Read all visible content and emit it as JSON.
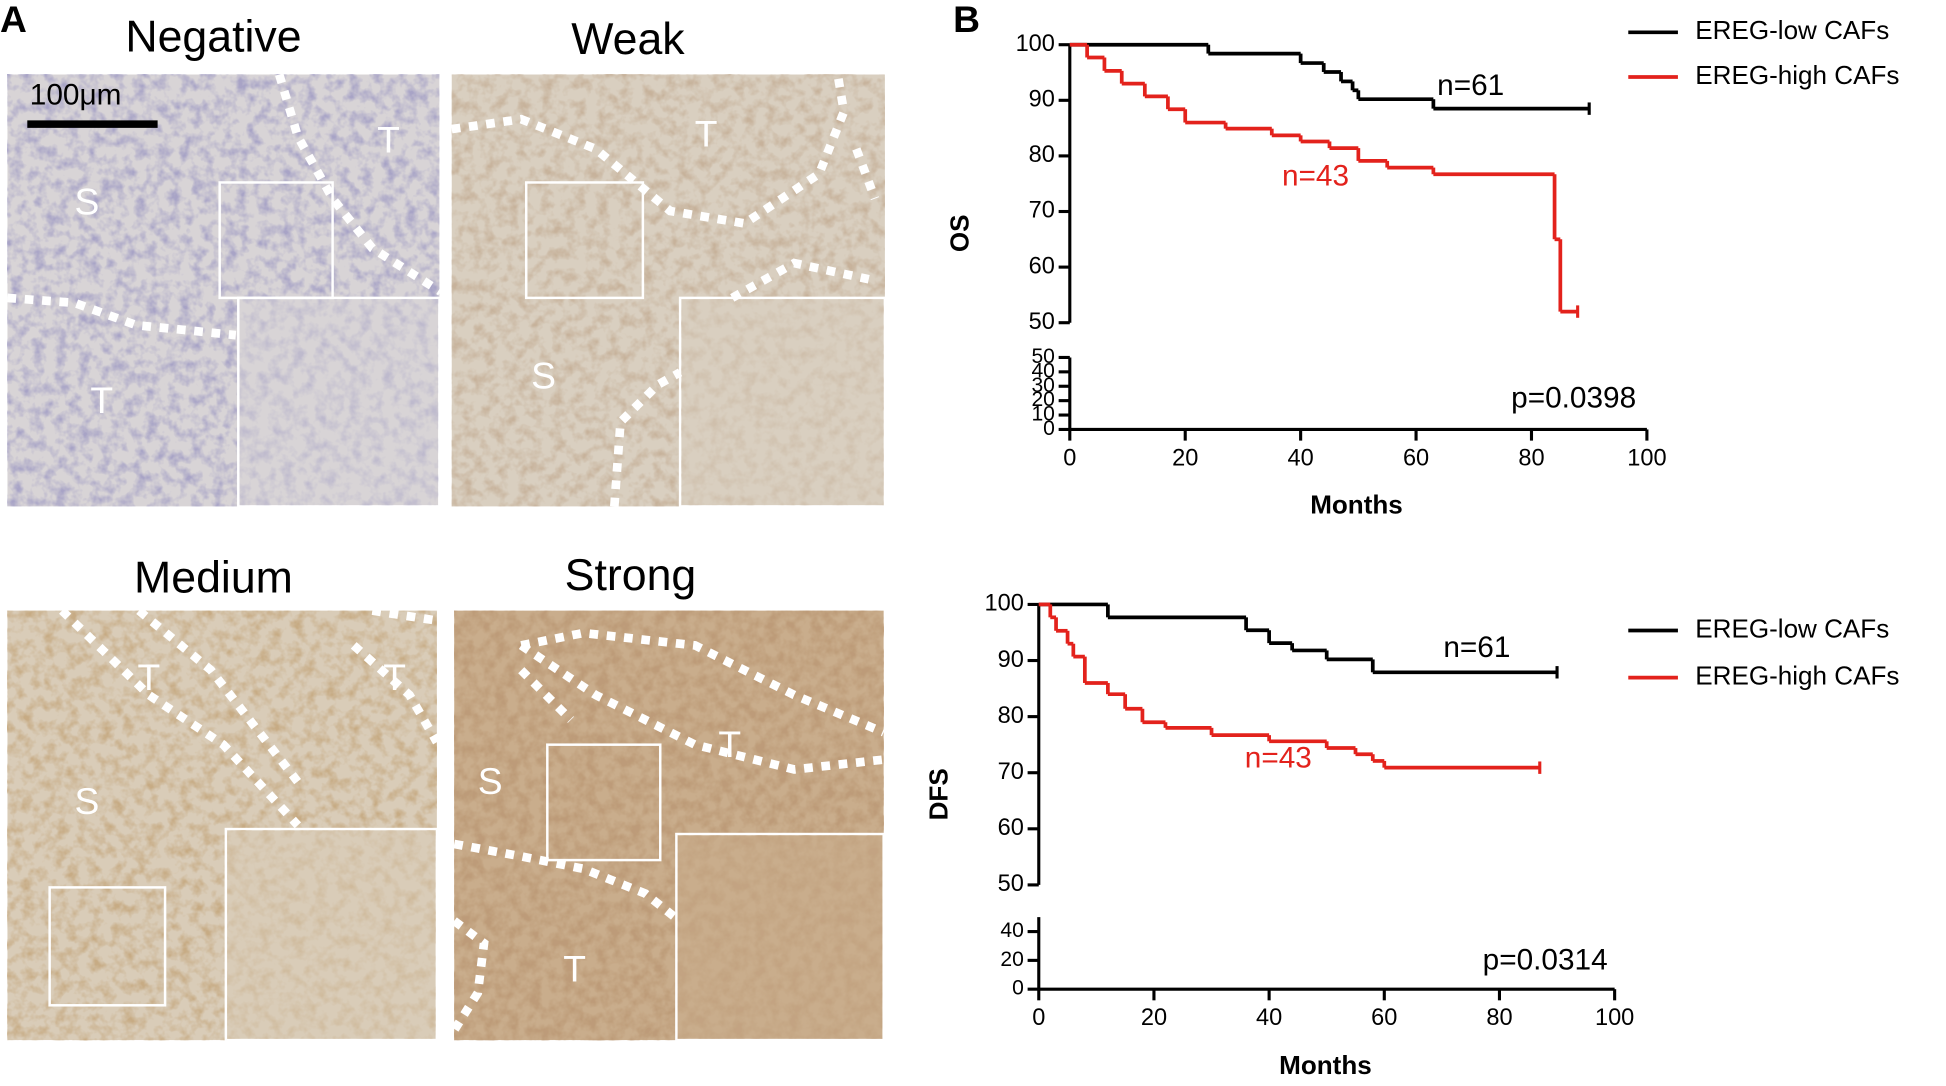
{
  "panel_a": {
    "label": "A",
    "scale_bar": "100μm",
    "panels": [
      {
        "title": "Negative",
        "labels": [
          "S",
          "T",
          "T"
        ]
      },
      {
        "title": "Weak",
        "labels": [
          "T",
          "S"
        ]
      },
      {
        "title": "Medium",
        "labels": [
          "T",
          "T",
          "S"
        ]
      },
      {
        "title": "Strong",
        "labels": [
          "S",
          "T",
          "T"
        ]
      }
    ]
  },
  "panel_b": {
    "label": "B"
  },
  "chart_data": [
    {
      "type": "line",
      "step": true,
      "ylabel": "OS",
      "xlabel": "Months",
      "xlim": [
        0,
        100
      ],
      "xticks": [
        0,
        20,
        40,
        60,
        80,
        100
      ],
      "ylim": [
        50,
        100
      ],
      "yticks": [
        50,
        60,
        70,
        80,
        90,
        100
      ],
      "lower_ylim": [
        0,
        50
      ],
      "lower_yticks": [
        0,
        10,
        20,
        30,
        40,
        50
      ],
      "legend": "right",
      "series": [
        {
          "name": "EREG-low CAFs",
          "color": "#000000",
          "x": [
            0,
            24,
            40,
            44,
            47,
            49,
            50,
            63,
            90
          ],
          "values": [
            100,
            98.4,
            96.7,
            95.1,
            93.4,
            91.8,
            90.2,
            88.5,
            88.5
          ]
        },
        {
          "name": "EREG-high CAFs",
          "color": "#e3221c",
          "x": [
            0,
            3,
            6,
            9,
            13,
            17,
            20,
            27,
            35,
            40,
            45,
            50,
            55,
            63,
            84,
            85,
            88
          ],
          "values": [
            100,
            97.7,
            95.3,
            93,
            90.7,
            88.4,
            86,
            84.9,
            83.7,
            82.6,
            81.4,
            79.1,
            77.9,
            76.7,
            65,
            52,
            52
          ]
        }
      ],
      "annotations": [
        {
          "text": "n=61",
          "color": "#000000"
        },
        {
          "text": "n=43",
          "color": "#e3221c"
        },
        {
          "text": "p=0.0398",
          "color": "#000000"
        }
      ]
    },
    {
      "type": "line",
      "step": true,
      "ylabel": "DFS",
      "xlabel": "Months",
      "xlim": [
        0,
        100
      ],
      "xticks": [
        0,
        20,
        40,
        60,
        80,
        100
      ],
      "ylim": [
        50,
        100
      ],
      "yticks": [
        50,
        60,
        70,
        80,
        90,
        100
      ],
      "lower_ylim": [
        0,
        50
      ],
      "lower_yticks": [
        0,
        20,
        40
      ],
      "legend": "right",
      "series": [
        {
          "name": "EREG-low CAFs",
          "color": "#000000",
          "x": [
            0,
            12,
            36,
            40,
            44,
            50,
            58,
            90
          ],
          "values": [
            100,
            97.7,
            95.4,
            93.1,
            91.8,
            90.2,
            87.9,
            87.9
          ]
        },
        {
          "name": "EREG-high CAFs",
          "color": "#e3221c",
          "x": [
            0,
            2,
            3,
            5,
            6,
            8,
            12,
            15,
            18,
            22,
            30,
            40,
            50,
            55,
            58,
            60,
            87
          ],
          "values": [
            100,
            97.7,
            95.3,
            93,
            90.7,
            86,
            84,
            81.4,
            79,
            78,
            76.7,
            75.6,
            74.4,
            73.3,
            72.1,
            70.9,
            70.9
          ]
        }
      ],
      "annotations": [
        {
          "text": "n=61",
          "color": "#000000"
        },
        {
          "text": "n=43",
          "color": "#e3221c"
        },
        {
          "text": "p=0.0314",
          "color": "#000000"
        }
      ]
    }
  ]
}
